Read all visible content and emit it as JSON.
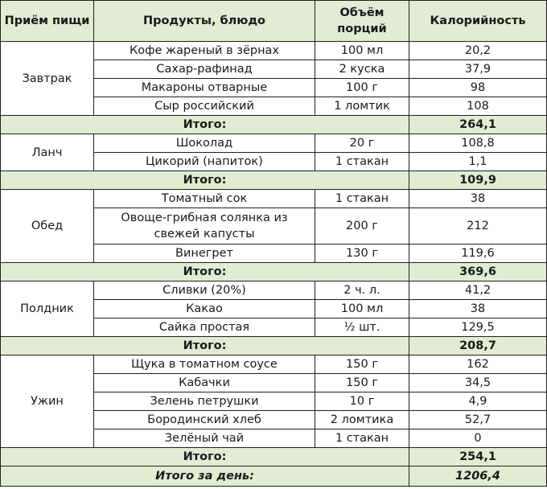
{
  "headers": [
    "Приём пищи",
    "Продукты, блюдо",
    "Объём порций",
    "Калорийность"
  ],
  "meals": [
    {
      "name": "Завтрак",
      "items": [
        {
          "product": "Кофе жареный в зёрнах",
          "portion": "100 мл",
          "kcal": "20,2"
        },
        {
          "product": "Сахар-рафинад",
          "portion": "2 куска",
          "kcal": "37,9"
        },
        {
          "product": "Макароны отварные",
          "portion": "100 г",
          "kcal": "98"
        },
        {
          "product": "Сыр российский",
          "portion": "1 ломтик",
          "kcal": "108"
        }
      ],
      "total_label": "Итого:",
      "total": "264,1"
    },
    {
      "name": "Ланч",
      "items": [
        {
          "product": "Шоколад",
          "portion": "20 г",
          "kcal": "108,8"
        },
        {
          "product": "Цикорий (напиток)",
          "portion": "1 стакан",
          "kcal": "1,1"
        }
      ],
      "total_label": "Итого:",
      "total": "109,9"
    },
    {
      "name": "Обед",
      "items": [
        {
          "product": "Томатный сок",
          "portion": "1 стакан",
          "kcal": "38"
        },
        {
          "product": "Овоще-грибная солянка из свежей капусты",
          "portion": "200 г",
          "kcal": "212"
        },
        {
          "product": "Винегрет",
          "portion": "130 г",
          "kcal": "119,6"
        }
      ],
      "total_label": "Итого:",
      "total": "369,6"
    },
    {
      "name": "Полдник",
      "items": [
        {
          "product": "Сливки (20%)",
          "portion": "2 ч. л.",
          "kcal": "41,2"
        },
        {
          "product": "Какао",
          "portion": "100 мл",
          "kcal": "38"
        },
        {
          "product": "Сайка простая",
          "portion": "½ шт.",
          "kcal": "129,5"
        }
      ],
      "total_label": "Итого:",
      "total": "208,7"
    },
    {
      "name": "Ужин",
      "items": [
        {
          "product": "Щука в томатном соусе",
          "portion": "150 г",
          "kcal": "162"
        },
        {
          "product": "Кабачки",
          "portion": "150 г",
          "kcal": "34,5"
        },
        {
          "product": "Зелень петрушки",
          "portion": "10 г",
          "kcal": "4,9"
        },
        {
          "product": "Бородинский хлеб",
          "portion": "2 ломтика",
          "kcal": "52,7"
        },
        {
          "product": "Зелёный чай",
          "portion": "1 стакан",
          "kcal": "0"
        }
      ],
      "total_label": "Итого:",
      "total": "254,1"
    }
  ],
  "grand_total": {
    "label": "Итого за день:",
    "value": "1206,4"
  },
  "colors": {
    "header_bg": "#e1ecd3",
    "border": "#1f1f1f",
    "text": "#1a1a1a"
  }
}
